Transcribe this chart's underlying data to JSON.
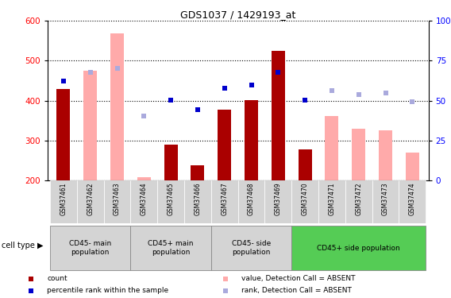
{
  "title": "GDS1037 / 1429193_at",
  "samples": [
    "GSM37461",
    "GSM37462",
    "GSM37463",
    "GSM37464",
    "GSM37465",
    "GSM37466",
    "GSM37467",
    "GSM37468",
    "GSM37469",
    "GSM37470",
    "GSM37471",
    "GSM37472",
    "GSM37473",
    "GSM37474"
  ],
  "count_values": [
    430,
    null,
    null,
    null,
    290,
    237,
    378,
    402,
    525,
    278,
    null,
    null,
    null,
    null
  ],
  "count_absent_values": [
    null,
    475,
    568,
    207,
    null,
    null,
    null,
    null,
    null,
    null,
    362,
    330,
    325,
    270
  ],
  "rank_values_pct": [
    448,
    null,
    null,
    null,
    402,
    378,
    432,
    440,
    470,
    402,
    null,
    null,
    null,
    null
  ],
  "rank_absent_values_pct": [
    null,
    470,
    480,
    362,
    null,
    null,
    null,
    null,
    null,
    null,
    425,
    415,
    420,
    398
  ],
  "ylim_left": [
    200,
    600
  ],
  "ylim_right": [
    0,
    100
  ],
  "left_ticks": [
    200,
    300,
    400,
    500,
    600
  ],
  "right_ticks": [
    0,
    25,
    50,
    75,
    100
  ],
  "right_tick_labels": [
    "0",
    "25",
    "50",
    "75",
    "100%"
  ],
  "groups": [
    {
      "label": "CD45- main\npopulation",
      "indices": [
        0,
        1,
        2
      ],
      "color": "#d4d4d4"
    },
    {
      "label": "CD45+ main\npopulation",
      "indices": [
        3,
        4,
        5
      ],
      "color": "#d4d4d4"
    },
    {
      "label": "CD45- side\npopulation",
      "indices": [
        6,
        7,
        8
      ],
      "color": "#d4d4d4"
    },
    {
      "label": "CD45+ side population",
      "indices": [
        9,
        10,
        11,
        12,
        13
      ],
      "color": "#55cc55"
    }
  ],
  "bar_color_present": "#aa0000",
  "bar_color_absent": "#ffaaaa",
  "dot_color_present": "#0000cc",
  "dot_color_absent": "#aaaadd",
  "bar_width": 0.5,
  "cell_type_label": "cell type"
}
